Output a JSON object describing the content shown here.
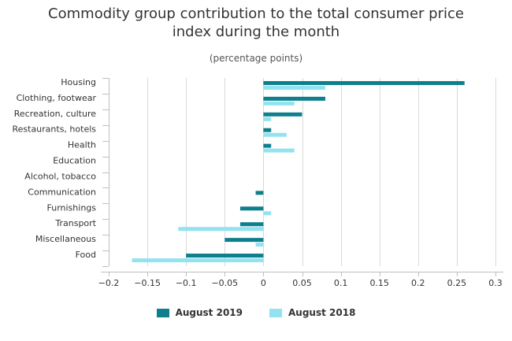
{
  "colors": {
    "series_2019": "#0e7f8c",
    "series_2018": "#92e3ef",
    "grid": "#d9d9d9",
    "axis": "#c0c0c0"
  },
  "chart_data": {
    "type": "bar",
    "orientation": "horizontal",
    "title": "Commodity group contribution to the total consumer price index during the month",
    "subtitle": "(percentage points)",
    "xlabel": "",
    "ylabel": "",
    "categories": [
      "Housing",
      "Clothing, footwear",
      "Recreation, culture",
      "Restaurants, hotels",
      "Health",
      "Education",
      "Alcohol, tobacco",
      "Communication",
      "Furnishings",
      "Transport",
      "Miscellaneous",
      "Food"
    ],
    "series": [
      {
        "name": "August 2019",
        "values": [
          0.26,
          0.08,
          0.05,
          0.01,
          0.01,
          0.0,
          0.0,
          -0.01,
          -0.03,
          -0.03,
          -0.05,
          -0.1
        ]
      },
      {
        "name": "August 2018",
        "values": [
          0.08,
          0.04,
          0.01,
          0.03,
          0.04,
          0.0,
          0.0,
          0.0,
          0.01,
          -0.11,
          -0.01,
          -0.17
        ]
      }
    ],
    "xlim": [
      -0.2,
      0.3
    ],
    "xticks": [
      "−0.2",
      "−0.15",
      "−0.1",
      "−0.05",
      "0",
      "0.05",
      "0.1",
      "0.15",
      "0.2",
      "0.25",
      "0.3"
    ],
    "xtick_values": [
      -0.2,
      -0.15,
      -0.1,
      -0.05,
      0,
      0.05,
      0.1,
      0.15,
      0.2,
      0.25,
      0.3
    ],
    "grid": true,
    "legend_position": "bottom-center"
  }
}
